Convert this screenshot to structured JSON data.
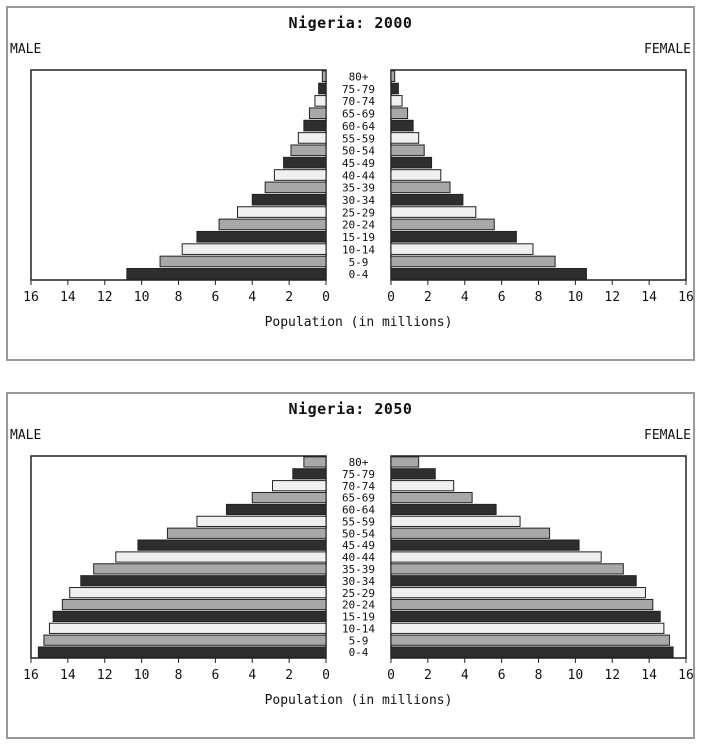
{
  "chart_data": [
    {
      "type": "bar",
      "orientation": "horizontal-pyramid",
      "title": "Nigeria: 2000",
      "left_label": "MALE",
      "right_label": "FEMALE",
      "xlabel": "Population (in millions)",
      "xticks": [
        "16",
        "14",
        "12",
        "10",
        "8",
        "6",
        "4",
        "2",
        "0"
      ],
      "xlim": [
        0,
        16
      ],
      "categories": [
        "0-4",
        "5-9",
        "10-14",
        "15-19",
        "20-24",
        "25-29",
        "30-34",
        "35-39",
        "40-44",
        "45-49",
        "50-54",
        "55-59",
        "60-64",
        "65-69",
        "70-74",
        "75-79",
        "80+"
      ],
      "series": [
        {
          "values": [
            10.8,
            9.0,
            7.8,
            7.0,
            5.8,
            4.8,
            4.0,
            3.3,
            2.8,
            2.3,
            1.9,
            1.5,
            1.2,
            0.9,
            0.6,
            0.4,
            0.2
          ]
        },
        {
          "values": [
            10.6,
            8.9,
            7.7,
            6.8,
            5.6,
            4.6,
            3.9,
            3.2,
            2.7,
            2.2,
            1.8,
            1.5,
            1.2,
            0.9,
            0.6,
            0.4,
            0.2
          ]
        }
      ],
      "colors": [
        "#2e2e2e",
        "#a8a8a8",
        "#f0f0f0"
      ]
    },
    {
      "type": "bar",
      "orientation": "horizontal-pyramid",
      "title": "Nigeria: 2050",
      "left_label": "MALE",
      "right_label": "FEMALE",
      "xlabel": "Population (in millions)",
      "xticks": [
        "16",
        "14",
        "12",
        "10",
        "8",
        "6",
        "4",
        "2",
        "0"
      ],
      "xlim": [
        0,
        16
      ],
      "categories": [
        "0-4",
        "5-9",
        "10-14",
        "15-19",
        "20-24",
        "25-29",
        "30-34",
        "35-39",
        "40-44",
        "45-49",
        "50-54",
        "55-59",
        "60-64",
        "65-69",
        "70-74",
        "75-79",
        "80+"
      ],
      "series": [
        {
          "values": [
            15.6,
            15.3,
            15.0,
            14.8,
            14.3,
            13.9,
            13.3,
            12.6,
            11.4,
            10.2,
            8.6,
            7.0,
            5.4,
            4.0,
            2.9,
            1.8,
            1.2
          ]
        },
        {
          "values": [
            15.3,
            15.1,
            14.8,
            14.6,
            14.2,
            13.8,
            13.3,
            12.6,
            11.4,
            10.2,
            8.6,
            7.0,
            5.7,
            4.4,
            3.4,
            2.4,
            1.5
          ]
        }
      ],
      "colors": [
        "#2e2e2e",
        "#a8a8a8",
        "#f0f0f0"
      ]
    }
  ]
}
